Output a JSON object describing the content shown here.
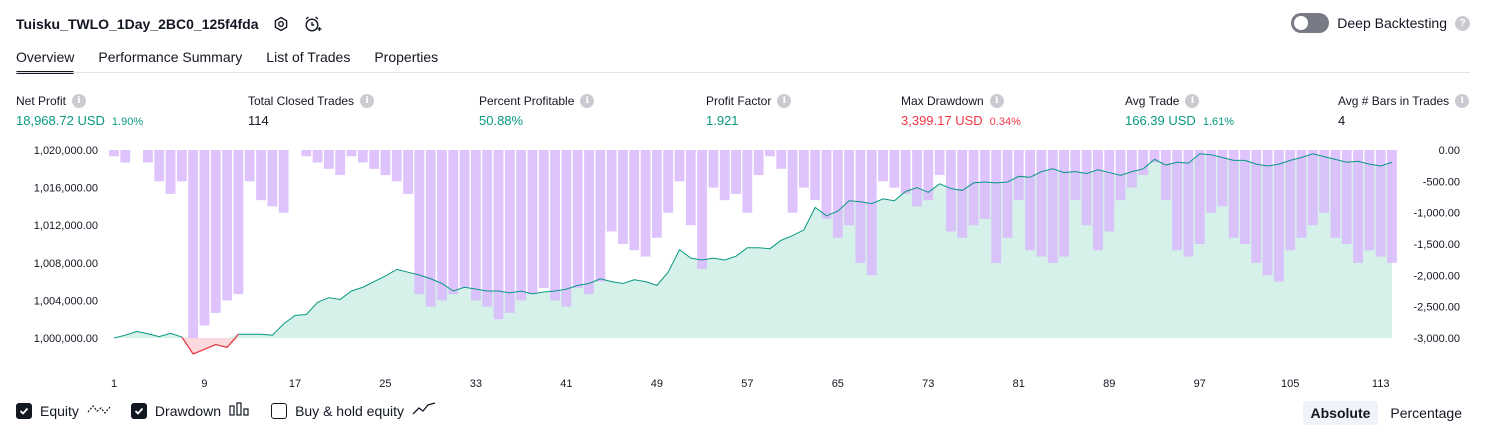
{
  "header": {
    "strategy_title": "Tuisku_TWLO_1Day_2BC0_125f4fda",
    "deep_backtesting_label": "Deep Backtesting"
  },
  "tabs": [
    {
      "label": "Overview"
    },
    {
      "label": "Performance Summary"
    },
    {
      "label": "List of Trades"
    },
    {
      "label": "Properties"
    }
  ],
  "metrics": {
    "net_profit": {
      "label": "Net Profit",
      "value": "18,968.72 USD",
      "pct": "1.90%"
    },
    "total_closed_trades": {
      "label": "Total Closed Trades",
      "value": "114"
    },
    "percent_profitable": {
      "label": "Percent Profitable",
      "value": "50.88%"
    },
    "profit_factor": {
      "label": "Profit Factor",
      "value": "1.921"
    },
    "max_drawdown": {
      "label": "Max Drawdown",
      "value": "3,399.17 USD",
      "pct": "0.34%"
    },
    "avg_trade": {
      "label": "Avg Trade",
      "value": "166.39 USD",
      "pct": "1.61%"
    },
    "avg_bars": {
      "label": "Avg # Bars in Trades",
      "value": "4"
    }
  },
  "colors": {
    "equity_line": "#089981",
    "equity_fill": "#d1f0e8",
    "drawdown_bar": "#d9b8fb",
    "negative": "#f23645",
    "text": "#131722"
  },
  "chart_data": {
    "type": "area",
    "x_ticks": [
      "1",
      "9",
      "17",
      "25",
      "33",
      "41",
      "49",
      "57",
      "65",
      "73",
      "81",
      "89",
      "97",
      "105",
      "113"
    ],
    "left_axis": {
      "ticks": [
        "1,020,000.00",
        "1,016,000.00",
        "1,012,000.00",
        "1,008,000.00",
        "1,004,000.00",
        "1,000,000.00"
      ],
      "ylim": [
        1000000,
        1020000
      ]
    },
    "right_axis": {
      "ticks": [
        "0.00",
        "-500.00",
        "-1,000.00",
        "-1,500.00",
        "-2,000.00",
        "-2,500.00",
        "-3,000.00"
      ],
      "ylim": [
        -3000,
        0
      ]
    },
    "series": [
      {
        "name": "Equity",
        "axis": "left",
        "x_start": 1,
        "values": [
          1000000,
          1000300,
          1000700,
          1000450,
          1000150,
          1000500,
          1000100,
          998300,
          998800,
          999300,
          999000,
          1000400,
          1000400,
          1000400,
          1000300,
          1001500,
          1002400,
          1002500,
          1003800,
          1004300,
          1004100,
          1005000,
          1005400,
          1006000,
          1006600,
          1007300,
          1007000,
          1006700,
          1006300,
          1005800,
          1005000,
          1005400,
          1005200,
          1005000,
          1005000,
          1004800,
          1005000,
          1004700,
          1004900,
          1005000,
          1005200,
          1005600,
          1005800,
          1006300,
          1006000,
          1005800,
          1006200,
          1006000,
          1005600,
          1007000,
          1009400,
          1008500,
          1008300,
          1008500,
          1008300,
          1008700,
          1009600,
          1009600,
          1009500,
          1010400,
          1010900,
          1011500,
          1013900,
          1013000,
          1013500,
          1014600,
          1014500,
          1014300,
          1014800,
          1014600,
          1015600,
          1016000,
          1015500,
          1016400,
          1015900,
          1015700,
          1016500,
          1016600,
          1016500,
          1016600,
          1017200,
          1017100,
          1017700,
          1018000,
          1017600,
          1017700,
          1017500,
          1017900,
          1017600,
          1017300,
          1017700,
          1018000,
          1019000,
          1018400,
          1018700,
          1018600,
          1019600,
          1019500,
          1019200,
          1018900,
          1018900,
          1018500,
          1018300,
          1018500,
          1018900,
          1019200,
          1019600,
          1019300,
          1019000,
          1018700,
          1018800,
          1018500,
          1018300,
          1018700
        ]
      },
      {
        "name": "Drawdown",
        "axis": "right",
        "x_start": 1,
        "values": [
          -100,
          -200,
          0,
          -200,
          -500,
          -700,
          -500,
          -3000,
          -2800,
          -2600,
          -2400,
          -2300,
          -500,
          -800,
          -900,
          -1000,
          0,
          -100,
          -200,
          -300,
          -400,
          -100,
          -200,
          -300,
          -400,
          -500,
          -700,
          -2300,
          -2500,
          -2400,
          -2300,
          -2200,
          -2400,
          -2500,
          -2700,
          -2600,
          -2400,
          -2300,
          -2200,
          -2400,
          -2500,
          -2200,
          -2300,
          -2100,
          -1300,
          -1500,
          -1600,
          -1700,
          -1400,
          -1000,
          -500,
          -1200,
          -1900,
          -600,
          -800,
          -700,
          -1000,
          -400,
          -100,
          -300,
          -1000,
          -600,
          -800,
          -1100,
          -1400,
          -1200,
          -1800,
          -2000,
          -500,
          -600,
          -700,
          -900,
          -800,
          -400,
          -1300,
          -1400,
          -1200,
          -1100,
          -1800,
          -1400,
          -800,
          -1600,
          -1700,
          -1800,
          -1700,
          -800,
          -1200,
          -1600,
          -1300,
          -800,
          -600,
          -400,
          -200,
          -800,
          -1600,
          -1700,
          -1500,
          -1000,
          -900,
          -1400,
          -1500,
          -1800,
          -2000,
          -2100,
          -1600,
          -1400,
          -1200,
          -1000,
          -1400,
          -1500,
          -1800,
          -1600,
          -1700,
          -1800
        ]
      }
    ]
  },
  "legend": {
    "equity_label": "Equity",
    "drawdown_label": "Drawdown",
    "buy_hold_label": "Buy & hold equity"
  },
  "view_modes": {
    "absolute": "Absolute",
    "percentage": "Percentage"
  }
}
